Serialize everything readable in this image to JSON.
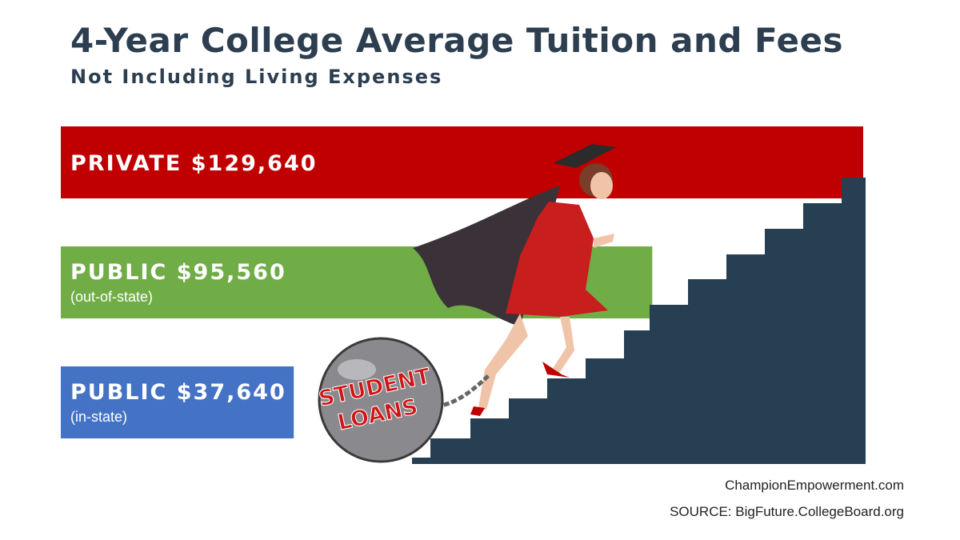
{
  "header": {
    "title": "4-Year College Average Tuition and Fees",
    "subtitle": "Not Including Living Expenses"
  },
  "illustration": {
    "ball_text_line1": "STUDENT",
    "ball_text_line2": "LOANS"
  },
  "footer": {
    "credit": "ChampionEmpowerment.com",
    "source": "SOURCE: BigFuture.CollegeBoard.org"
  },
  "chart_data": {
    "type": "bar",
    "orientation": "horizontal",
    "categories": [
      "PRIVATE",
      "PUBLIC (out-of-state)",
      "PUBLIC (in-state)"
    ],
    "values": [
      129640,
      95560,
      37640
    ],
    "value_labels": [
      "$129,640",
      "$95,560",
      "$37,640"
    ],
    "notes": [
      "",
      "(out-of-state)",
      "(in-state)"
    ],
    "bar_labels": [
      "PRIVATE",
      "PUBLIC",
      "PUBLIC"
    ],
    "colors": [
      "#c00000",
      "#70ad47",
      "#4472c4"
    ],
    "title": "4-Year College Average Tuition and Fees",
    "subtitle": "Not Including Living Expenses",
    "grid": false,
    "legend": "none"
  }
}
